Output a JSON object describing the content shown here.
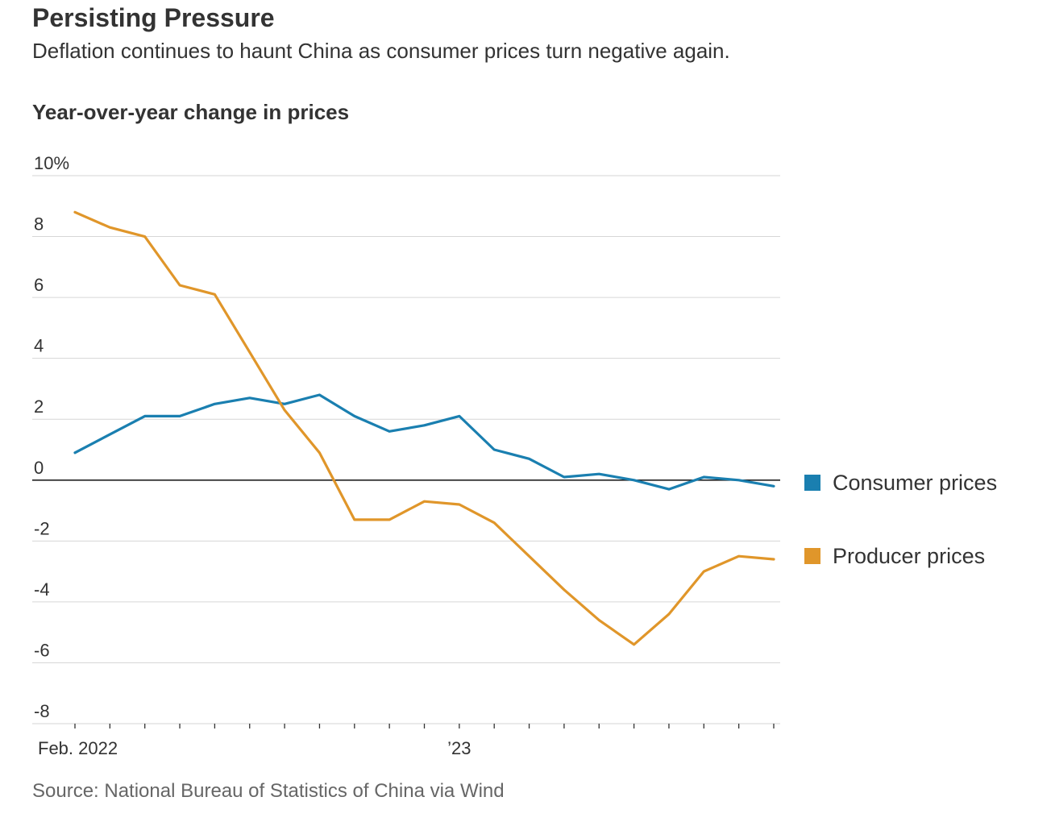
{
  "title": "Persisting Pressure",
  "subtitle": "Deflation continues to haunt China as consumer prices turn negative again.",
  "source": "Source: National Bureau of Statistics of China via Wind",
  "colors": {
    "consumer": "#1a7fb0",
    "producer": "#e0962a",
    "grid": "#d6d6d6",
    "zero": "#222222"
  },
  "chart_data": {
    "type": "line",
    "title": "Year-over-year change in prices",
    "ylabel": "",
    "xlabel": "",
    "ylim": [
      -8,
      10
    ],
    "yticks": [
      {
        "value": 10,
        "label": "10%"
      },
      {
        "value": 8,
        "label": "8"
      },
      {
        "value": 6,
        "label": "6"
      },
      {
        "value": 4,
        "label": "4"
      },
      {
        "value": 2,
        "label": "2"
      },
      {
        "value": 0,
        "label": "0"
      },
      {
        "value": -2,
        "label": "-2"
      },
      {
        "value": -4,
        "label": "-4"
      },
      {
        "value": -6,
        "label": "-6"
      },
      {
        "value": -8,
        "label": "-8"
      }
    ],
    "x": [
      "2022-02",
      "2022-03",
      "2022-04",
      "2022-05",
      "2022-06",
      "2022-07",
      "2022-08",
      "2022-09",
      "2022-10",
      "2022-11",
      "2022-12",
      "2023-01",
      "2023-02",
      "2023-03",
      "2023-04",
      "2023-05",
      "2023-06",
      "2023-07",
      "2023-08",
      "2023-09",
      "2023-10"
    ],
    "xtick_labels": [
      {
        "index": 0,
        "label": "Feb. 2022"
      },
      {
        "index": 11,
        "label": "’23"
      }
    ],
    "grid": true,
    "legend_position": "right",
    "series": [
      {
        "name": "Consumer prices",
        "color_key": "consumer",
        "values": [
          0.9,
          1.5,
          2.1,
          2.1,
          2.5,
          2.7,
          2.5,
          2.8,
          2.1,
          1.6,
          1.8,
          2.1,
          1.0,
          0.7,
          0.1,
          0.2,
          0.0,
          -0.3,
          0.1,
          0.0,
          -0.2
        ]
      },
      {
        "name": "Producer prices",
        "color_key": "producer",
        "values": [
          8.8,
          8.3,
          8.0,
          6.4,
          6.1,
          4.2,
          2.3,
          0.9,
          -1.3,
          -1.3,
          -0.7,
          -0.8,
          -1.4,
          -2.5,
          -3.6,
          -4.6,
          -5.4,
          -4.4,
          -3.0,
          -2.5,
          -2.6
        ]
      }
    ]
  }
}
